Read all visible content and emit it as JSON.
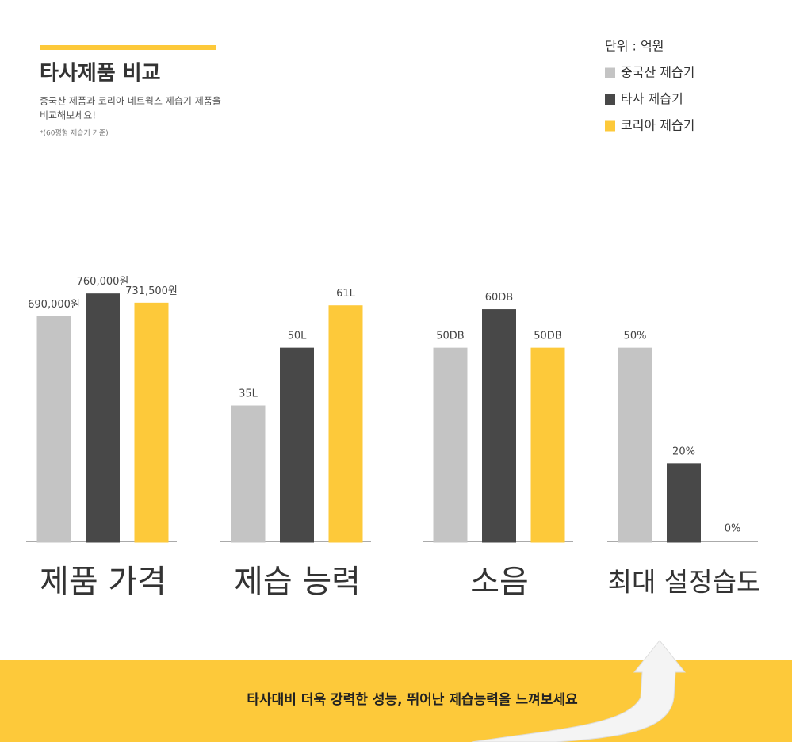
{
  "header": {
    "title": "타사제품 비교",
    "description": [
      "중국산 제품과 코리아 네트웍스 제습기 제품을",
      "비교해보세요!"
    ],
    "note": "*(60평형 제습기 기준)"
  },
  "legend": {
    "unit": "단위 : 억원",
    "items": [
      {
        "name": "중국산 제습기",
        "color": "#c4c4c4"
      },
      {
        "name": "타사 제습기",
        "color": "#484848"
      },
      {
        "name": "코리아 제습기",
        "color": "#fdc93a"
      }
    ]
  },
  "chart_data": [
    {
      "type": "bar",
      "title": "제품 가격",
      "values": [
        690000,
        760000,
        731500
      ],
      "value_labels": [
        "690,000원",
        "760,000원",
        "731,500원"
      ],
      "ylim": [
        0,
        830000
      ]
    },
    {
      "type": "bar",
      "title": "제습 능력",
      "values": [
        35,
        50,
        61
      ],
      "value_labels": [
        "35L",
        "50L",
        "61L"
      ],
      "ylim": [
        0,
        70
      ]
    },
    {
      "type": "bar",
      "title": "소음",
      "values": [
        50,
        60,
        50
      ],
      "value_labels": [
        "50DB",
        "60DB",
        "50DB"
      ],
      "ylim": [
        0,
        70
      ]
    },
    {
      "type": "bar",
      "title": "최대 설정습도",
      "values": [
        50,
        20,
        0
      ],
      "value_labels": [
        "50%",
        "20%",
        "0%"
      ],
      "ylim": [
        0,
        70
      ]
    }
  ],
  "banner": {
    "text": "타사대비 더욱 강력한 성능, 뛰어난 제습능력을 느껴보세요"
  }
}
